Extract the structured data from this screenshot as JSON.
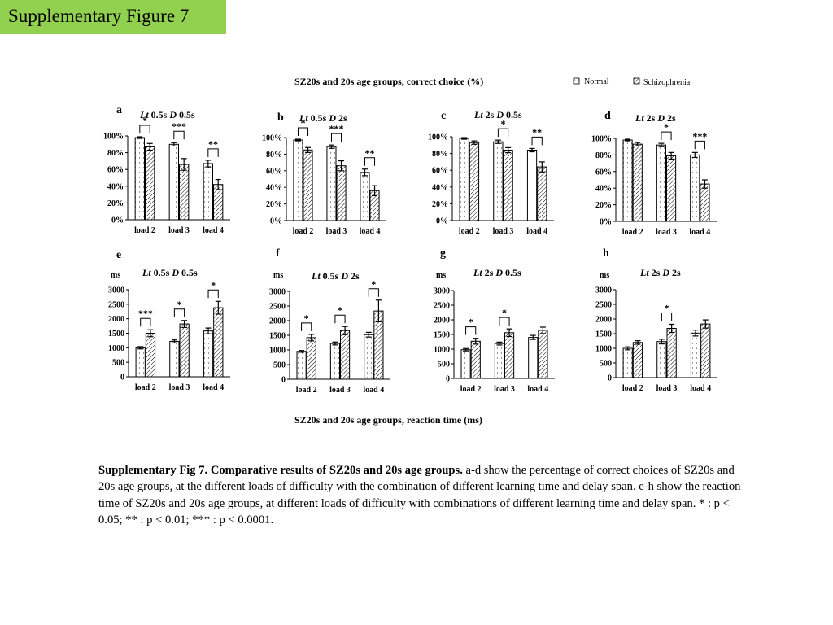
{
  "header": {
    "title": "Supplementary Figure 7"
  },
  "figure": {
    "top_title": "SZ20s and 20s age groups, correct choice (%)",
    "bottom_title": "SZ20s and 20s age groups, reaction time (ms)",
    "legend": {
      "normal": "Normal",
      "schizophrenia": "Schizophrenia"
    }
  },
  "caption": {
    "bold": "Supplementary Fig 7. Comparative results of SZ20s and 20s age groups.",
    "text": " a-d show the percentage of correct choices of SZ20s and 20s age groups, at the different loads of difficulty with the combination of different learning time and delay span. e-h show the reaction time of SZ20s and 20s age groups, at different loads of difficulty with combinations of different learning time and delay span. * : p < 0.05; ** : p < 0.01; *** : p < 0.0001."
  },
  "chart_data": [
    {
      "type": "bar",
      "panel": "a",
      "lt": "0.5s",
      "d": "0.5s",
      "categories": [
        "load 2",
        "load 3",
        "load 4"
      ],
      "ylim": [
        0,
        100
      ],
      "yticks": [
        "0%",
        "20%",
        "40%",
        "60%",
        "80%",
        "100%"
      ],
      "series": [
        {
          "name": "Normal",
          "values": [
            98,
            90,
            67
          ],
          "err": [
            1,
            2,
            4
          ]
        },
        {
          "name": "Schizophrenia",
          "values": [
            87,
            66,
            42
          ],
          "err": [
            4,
            7,
            6
          ]
        }
      ],
      "sig": [
        "*",
        "***",
        "**"
      ]
    },
    {
      "type": "bar",
      "panel": "b",
      "lt": "0.5s",
      "d": "2s",
      "categories": [
        "load 2",
        "load 3",
        "load 4"
      ],
      "ylim": [
        0,
        100
      ],
      "yticks": [
        "0%",
        "20%",
        "40%",
        "60%",
        "80%",
        "100%"
      ],
      "series": [
        {
          "name": "Normal",
          "values": [
            97,
            89,
            58
          ],
          "err": [
            1,
            2,
            4
          ]
        },
        {
          "name": "Schizophrenia",
          "values": [
            85,
            66,
            36
          ],
          "err": [
            3,
            6,
            6
          ]
        }
      ],
      "sig": [
        "*",
        "***",
        "**"
      ]
    },
    {
      "type": "bar",
      "panel": "c",
      "lt": "2s",
      "d": "0.5s",
      "categories": [
        "load 2",
        "load 3",
        "load 4"
      ],
      "ylim": [
        0,
        100
      ],
      "yticks": [
        "0%",
        "20%",
        "40%",
        "60%",
        "80%",
        "100%"
      ],
      "series": [
        {
          "name": "Normal",
          "values": [
            98,
            94,
            84
          ],
          "err": [
            1,
            2,
            2
          ]
        },
        {
          "name": "Schizophrenia",
          "values": [
            93,
            84,
            64
          ],
          "err": [
            2,
            3,
            6
          ]
        }
      ],
      "sig": [
        "",
        "*",
        "**"
      ]
    },
    {
      "type": "bar",
      "panel": "d",
      "lt": "2s",
      "d": "2s",
      "categories": [
        "load 2",
        "load 3",
        "load 4"
      ],
      "ylim": [
        0,
        100
      ],
      "yticks": [
        "0%",
        "20%",
        "40%",
        "60%",
        "80%",
        "100%"
      ],
      "series": [
        {
          "name": "Normal",
          "values": [
            98,
            92,
            80
          ],
          "err": [
            1,
            2,
            3
          ]
        },
        {
          "name": "Schizophrenia",
          "values": [
            93,
            79,
            45
          ],
          "err": [
            2,
            4,
            5
          ]
        }
      ],
      "sig": [
        "",
        "*",
        "***"
      ]
    },
    {
      "type": "bar",
      "panel": "e",
      "lt": "0.5s",
      "d": "0.5s",
      "categories": [
        "load 2",
        "load 3",
        "load 4"
      ],
      "ylabel": "ms",
      "ylim": [
        0,
        3000
      ],
      "yticks": [
        "0",
        "500",
        "1000",
        "1500",
        "2000",
        "2500",
        "3000"
      ],
      "series": [
        {
          "name": "Normal",
          "values": [
            1000,
            1220,
            1580
          ],
          "err": [
            40,
            50,
            100
          ]
        },
        {
          "name": "Schizophrenia",
          "values": [
            1500,
            1820,
            2380
          ],
          "err": [
            120,
            120,
            220
          ]
        }
      ],
      "sig": [
        "***",
        "*",
        "*"
      ]
    },
    {
      "type": "bar",
      "panel": "f",
      "lt": "0.5s",
      "d": "2s",
      "categories": [
        "load 2",
        "load 3",
        "load 4"
      ],
      "ylabel": "ms",
      "ylim": [
        0,
        3000
      ],
      "yticks": [
        "0",
        "500",
        "1000",
        "1500",
        "2000",
        "2500",
        "3000"
      ],
      "series": [
        {
          "name": "Normal",
          "values": [
            950,
            1220,
            1520
          ],
          "err": [
            30,
            50,
            80
          ]
        },
        {
          "name": "Schizophrenia",
          "values": [
            1420,
            1660,
            2330
          ],
          "err": [
            110,
            140,
            370
          ]
        }
      ],
      "sig": [
        "*",
        "*",
        "*"
      ]
    },
    {
      "type": "bar",
      "panel": "g",
      "lt": "2s",
      "d": "0.5s",
      "categories": [
        "load 2",
        "load 3",
        "load 4"
      ],
      "ylabel": "ms",
      "ylim": [
        0,
        3000
      ],
      "yticks": [
        "0",
        "500",
        "1000",
        "1500",
        "2000",
        "2500",
        "3000"
      ],
      "series": [
        {
          "name": "Normal",
          "values": [
            980,
            1190,
            1400
          ],
          "err": [
            40,
            50,
            70
          ]
        },
        {
          "name": "Schizophrenia",
          "values": [
            1270,
            1560,
            1640
          ],
          "err": [
            100,
            130,
            110
          ]
        }
      ],
      "sig": [
        "*",
        "*",
        ""
      ]
    },
    {
      "type": "bar",
      "panel": "h",
      "lt": "2s",
      "d": "2s",
      "categories": [
        "load 2",
        "load 3",
        "load 4"
      ],
      "ylabel": "ms",
      "ylim": [
        0,
        3000
      ],
      "yticks": [
        "0",
        "500",
        "1000",
        "1500",
        "2000",
        "2500",
        "3000"
      ],
      "series": [
        {
          "name": "Normal",
          "values": [
            1000,
            1230,
            1520
          ],
          "err": [
            50,
            80,
            100
          ]
        },
        {
          "name": "Schizophrenia",
          "values": [
            1200,
            1680,
            1830
          ],
          "err": [
            60,
            140,
            140
          ]
        }
      ],
      "sig": [
        "",
        "*",
        ""
      ]
    }
  ]
}
